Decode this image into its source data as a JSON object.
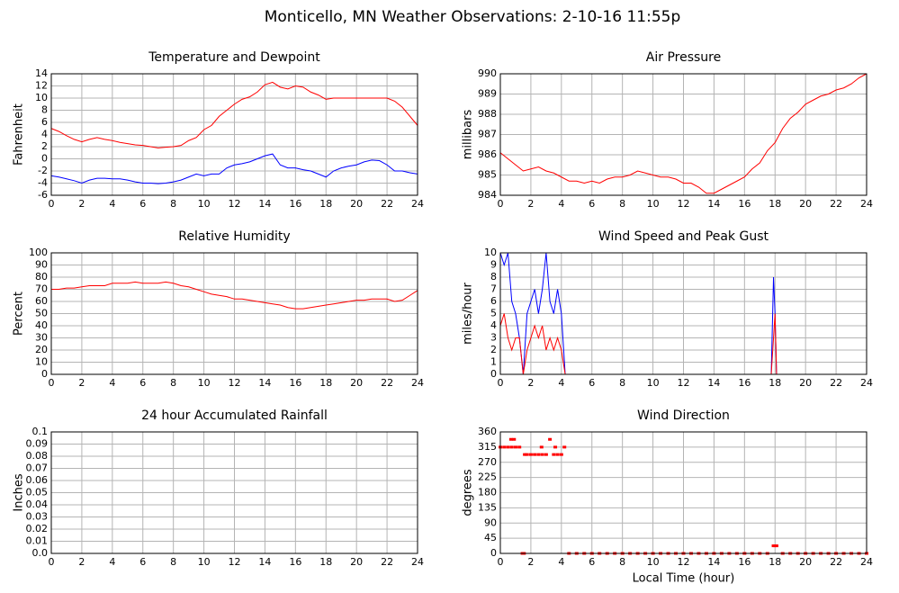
{
  "title": "Monticello, MN Weather Observations: 2-10-16 11:55p",
  "chart_data": [
    {
      "type": "line",
      "title": "Temperature and Dewpoint",
      "y_label": "Fahrenheit",
      "grid": true,
      "x": [
        0,
        0.5,
        1,
        1.5,
        2,
        2.5,
        3,
        3.5,
        4,
        4.5,
        5,
        5.5,
        6,
        6.5,
        7,
        7.5,
        8,
        8.5,
        9,
        9.5,
        10,
        10.5,
        11,
        11.5,
        12,
        12.5,
        13,
        13.5,
        14,
        14.5,
        15,
        15.5,
        16,
        16.5,
        17,
        17.5,
        18,
        18.5,
        19,
        19.5,
        20,
        20.5,
        21,
        21.5,
        22,
        22.5,
        23,
        23.5,
        24
      ],
      "series": [
        {
          "color": "#ff0000",
          "values": [
            5,
            4.5,
            3.8,
            3.2,
            2.8,
            3.2,
            3.5,
            3.2,
            3,
            2.7,
            2.5,
            2.3,
            2.2,
            2,
            1.8,
            1.9,
            2,
            2.2,
            3,
            3.5,
            4.8,
            5.5,
            7,
            8,
            9,
            9.8,
            10.2,
            11,
            12.2,
            12.6,
            11.8,
            11.5,
            12,
            11.8,
            11,
            10.5,
            9.8,
            10,
            10,
            10,
            10,
            10,
            10,
            10,
            10,
            9.5,
            8.5,
            7,
            5.5
          ]
        },
        {
          "color": "#0000ff",
          "values": [
            -2.8,
            -3,
            -3.3,
            -3.6,
            -4,
            -3.5,
            -3.2,
            -3.2,
            -3.3,
            -3.3,
            -3.5,
            -3.8,
            -4,
            -4,
            -4.1,
            -4,
            -3.8,
            -3.5,
            -3,
            -2.5,
            -2.8,
            -2.5,
            -2.5,
            -1.5,
            -1,
            -0.8,
            -0.5,
            0,
            0.5,
            0.8,
            -1,
            -1.5,
            -1.5,
            -1.8,
            -2,
            -2.5,
            -3,
            -2,
            -1.5,
            -1.2,
            -1,
            -0.5,
            -0.2,
            -0.3,
            -1,
            -2,
            -2,
            -2.3,
            -2.5
          ]
        }
      ],
      "xlim": [
        0,
        24
      ],
      "xticks": [
        0,
        2,
        4,
        6,
        8,
        10,
        12,
        14,
        16,
        18,
        20,
        22,
        24
      ],
      "ylim": [
        -6,
        14
      ],
      "yticks": [
        -6,
        -4,
        -2,
        0,
        2,
        4,
        6,
        8,
        10,
        12,
        14
      ]
    },
    {
      "type": "line",
      "title": "Air Pressure",
      "y_label": "millibars",
      "grid": true,
      "x": [
        0,
        0.5,
        1,
        1.5,
        2,
        2.5,
        3,
        3.5,
        4,
        4.5,
        5,
        5.5,
        6,
        6.5,
        7,
        7.5,
        8,
        8.5,
        9,
        9.5,
        10,
        10.5,
        11,
        11.5,
        12,
        12.5,
        13,
        13.5,
        14,
        14.5,
        15,
        15.5,
        16,
        16.5,
        17,
        17.5,
        18,
        18.5,
        19,
        19.5,
        20,
        20.5,
        21,
        21.5,
        22,
        22.5,
        23,
        23.5,
        24
      ],
      "series": [
        {
          "color": "#ff0000",
          "values": [
            986.1,
            985.8,
            985.5,
            985.2,
            985.3,
            985.4,
            985.2,
            985.1,
            984.9,
            984.7,
            984.7,
            984.6,
            984.7,
            984.6,
            984.8,
            984.9,
            984.9,
            985,
            985.2,
            985.1,
            985,
            984.9,
            984.9,
            984.8,
            984.6,
            984.6,
            984.4,
            984.1,
            984.1,
            984.3,
            984.5,
            984.7,
            984.9,
            985.3,
            985.6,
            986.2,
            986.6,
            987.3,
            987.8,
            988.1,
            988.5,
            988.7,
            988.9,
            989,
            989.2,
            989.3,
            989.5,
            989.8,
            990
          ]
        }
      ],
      "xlim": [
        0,
        24
      ],
      "xticks": [
        0,
        2,
        4,
        6,
        8,
        10,
        12,
        14,
        16,
        18,
        20,
        22,
        24
      ],
      "ylim": [
        984,
        990
      ],
      "yticks": [
        984,
        985,
        986,
        987,
        988,
        989,
        990
      ]
    },
    {
      "type": "line",
      "title": "Relative Humidity",
      "y_label": "Percent",
      "grid": true,
      "x": [
        0,
        0.5,
        1,
        1.5,
        2,
        2.5,
        3,
        3.5,
        4,
        4.5,
        5,
        5.5,
        6,
        6.5,
        7,
        7.5,
        8,
        8.5,
        9,
        9.5,
        10,
        10.5,
        11,
        11.5,
        12,
        12.5,
        13,
        13.5,
        14,
        14.5,
        15,
        15.5,
        16,
        16.5,
        17,
        17.5,
        18,
        18.5,
        19,
        19.5,
        20,
        20.5,
        21,
        21.5,
        22,
        22.5,
        23,
        23.5,
        24
      ],
      "series": [
        {
          "color": "#ff0000",
          "values": [
            70,
            70,
            71,
            71,
            72,
            73,
            73,
            73,
            75,
            75,
            75,
            76,
            75,
            75,
            75,
            76,
            75,
            73,
            72,
            70,
            68,
            66,
            65,
            64,
            62,
            62,
            61,
            60,
            59,
            58,
            57,
            55,
            54,
            54,
            55,
            56,
            57,
            58,
            59,
            60,
            61,
            61,
            62,
            62,
            62,
            60,
            61,
            65,
            69
          ]
        }
      ],
      "xlim": [
        0,
        24
      ],
      "xticks": [
        0,
        2,
        4,
        6,
        8,
        10,
        12,
        14,
        16,
        18,
        20,
        22,
        24
      ],
      "ylim": [
        0,
        100
      ],
      "yticks": [
        0,
        10,
        20,
        30,
        40,
        50,
        60,
        70,
        80,
        90,
        100
      ]
    },
    {
      "type": "line",
      "title": "Wind Speed and Peak Gust",
      "y_label": "miles/hour",
      "grid": true,
      "x": [
        0,
        0.25,
        0.5,
        0.75,
        1,
        1.25,
        1.5,
        1.75,
        2,
        2.25,
        2.5,
        2.75,
        3,
        3.25,
        3.5,
        3.75,
        4,
        4.25,
        6,
        8,
        10,
        12,
        14,
        16,
        17.75,
        17.9,
        18,
        18.1,
        18.25,
        20,
        22,
        24
      ],
      "series": [
        {
          "color": "#0000ff",
          "values": [
            10,
            9,
            10,
            6,
            5,
            3,
            0,
            5,
            6,
            7,
            5,
            7,
            10,
            6,
            5,
            7,
            5,
            0,
            0,
            0,
            0,
            0,
            0,
            0,
            0,
            8,
            5,
            0,
            0,
            0,
            0,
            0
          ]
        },
        {
          "color": "#ff0000",
          "values": [
            4,
            5,
            3,
            2,
            3,
            3,
            0,
            2,
            3,
            4,
            3,
            4,
            2,
            3,
            2,
            3,
            2,
            0,
            0,
            0,
            0,
            0,
            0,
            0,
            0,
            3,
            5,
            0,
            0,
            0,
            0,
            0
          ]
        }
      ],
      "xlim": [
        0,
        24
      ],
      "xticks": [
        0,
        2,
        4,
        6,
        8,
        10,
        12,
        14,
        16,
        18,
        20,
        22,
        24
      ],
      "ylim": [
        0,
        10
      ],
      "yticks": [
        0,
        1,
        2,
        3,
        4,
        5,
        6,
        7,
        8,
        9,
        10
      ]
    },
    {
      "type": "line",
      "title": "24 hour Accumulated Rainfall",
      "y_label": "Inches",
      "grid": true,
      "x": [
        0,
        24
      ],
      "series": [
        {
          "color": "#ff0000",
          "values": [
            0,
            0
          ]
        }
      ],
      "xlim": [
        0,
        24
      ],
      "xticks": [
        0,
        2,
        4,
        6,
        8,
        10,
        12,
        14,
        16,
        18,
        20,
        22,
        24
      ],
      "ylim": [
        0,
        0.1
      ],
      "yticks": [
        {
          "value": 0,
          "label": "0.0"
        },
        0.01,
        0.02,
        0.03,
        0.04,
        0.05,
        0.06,
        0.07,
        0.08,
        0.09,
        0.1
      ]
    },
    {
      "type": "scatter",
      "title": "Wind Direction",
      "y_label": "degrees",
      "x_label": "Local Time (hour)",
      "grid": true,
      "x": [
        0,
        0.25,
        0.5,
        0.7,
        0.75,
        0.9,
        1,
        1.25,
        1.45,
        1.55,
        1.6,
        1.75,
        2,
        2.25,
        2.5,
        2.7,
        2.75,
        3,
        3.25,
        3.5,
        3.6,
        3.75,
        4,
        4.2,
        4.5,
        5,
        5.5,
        6,
        6.5,
        7,
        7.5,
        8,
        8.5,
        9,
        9.5,
        10,
        10.5,
        11,
        11.5,
        12,
        12.5,
        13,
        13.5,
        14,
        14.5,
        15,
        15.5,
        16,
        16.5,
        17,
        17.5,
        17.9,
        18,
        18.1,
        18.5,
        19,
        19.5,
        20,
        20.5,
        21,
        21.5,
        22,
        22.5,
        23,
        23.5,
        24
      ],
      "series": [
        {
          "color": "#ff0000",
          "values": [
            315,
            315,
            315,
            338,
            315,
            338,
            315,
            315,
            0,
            0,
            293,
            293,
            293,
            293,
            293,
            315,
            293,
            293,
            338,
            293,
            315,
            293,
            293,
            315,
            0,
            0,
            0,
            0,
            0,
            0,
            0,
            0,
            0,
            0,
            0,
            0,
            0,
            0,
            0,
            0,
            0,
            0,
            0,
            0,
            0,
            0,
            0,
            0,
            0,
            0,
            0,
            22.5,
            22.5,
            22.5,
            0,
            0,
            0,
            0,
            0,
            0,
            0,
            0,
            0,
            0,
            0,
            0
          ]
        }
      ],
      "xlim": [
        0,
        24
      ],
      "xticks": [
        0,
        2,
        4,
        6,
        8,
        10,
        12,
        14,
        16,
        18,
        20,
        22,
        24
      ],
      "ylim": [
        0,
        360
      ],
      "yticks": [
        0,
        45,
        90,
        135,
        180,
        225,
        270,
        315,
        360
      ]
    }
  ]
}
